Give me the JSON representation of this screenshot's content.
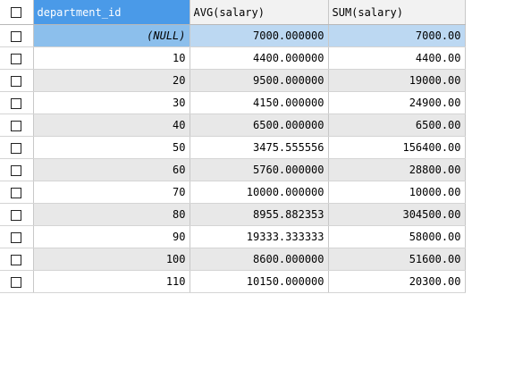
{
  "columns": [
    "department_id",
    "AVG(salary)",
    "SUM(salary)"
  ],
  "rows": [
    {
      "department_id": "(NULL)",
      "avg": "7000.000000",
      "sum": "7000.00"
    },
    {
      "department_id": "10",
      "avg": "4400.000000",
      "sum": "4400.00"
    },
    {
      "department_id": "20",
      "avg": "9500.000000",
      "sum": "19000.00"
    },
    {
      "department_id": "30",
      "avg": "4150.000000",
      "sum": "24900.00"
    },
    {
      "department_id": "40",
      "avg": "6500.000000",
      "sum": "6500.00"
    },
    {
      "department_id": "50",
      "avg": "3475.555556",
      "sum": "156400.00"
    },
    {
      "department_id": "60",
      "avg": "5760.000000",
      "sum": "28800.00"
    },
    {
      "department_id": "70",
      "avg": "10000.000000",
      "sum": "10000.00"
    },
    {
      "department_id": "80",
      "avg": "8955.882353",
      "sum": "304500.00"
    },
    {
      "department_id": "90",
      "avg": "19333.333333",
      "sum": "58000.00"
    },
    {
      "department_id": "100",
      "avg": "8600.000000",
      "sum": "51600.00"
    },
    {
      "department_id": "110",
      "avg": "10150.000000",
      "sum": "20300.00"
    }
  ],
  "colors": {
    "header_selected": "#4a9ae8",
    "row_selected": "#bcd8f2",
    "row_alt": "#e8e8e8"
  }
}
